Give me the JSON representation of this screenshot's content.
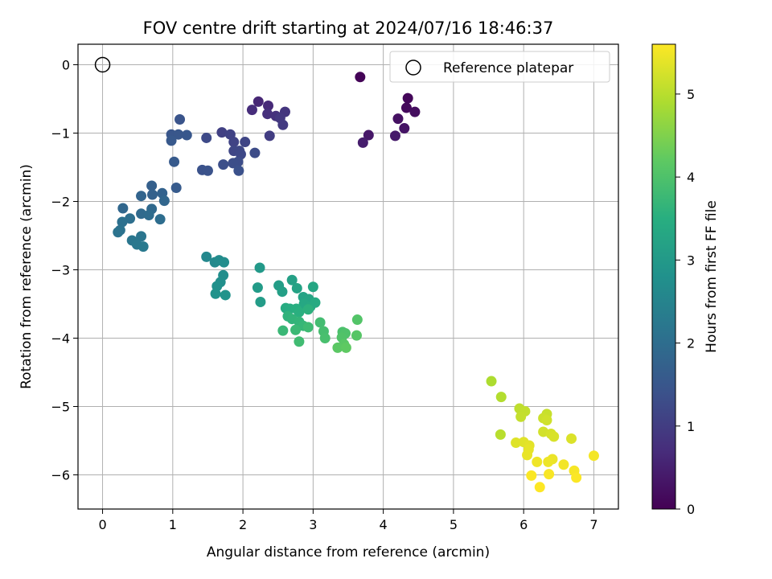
{
  "chart_data": {
    "type": "scatter",
    "title": "FOV centre drift starting at 2024/07/16 18:46:37",
    "xlabel": "Angular distance from reference (arcmin)",
    "ylabel": "Rotation from reference (arcmin)",
    "xlim": [
      -0.35,
      7.35
    ],
    "ylim": [
      -6.5,
      0.3
    ],
    "xticks": [
      0,
      1,
      2,
      3,
      4,
      5,
      6,
      7
    ],
    "yticks": [
      0,
      -1,
      -2,
      -3,
      -4,
      -5,
      -6
    ],
    "grid": true,
    "legend": {
      "placement": "top-right",
      "entries": [
        "Reference platepar"
      ]
    },
    "reference_point": {
      "x": 0,
      "y": 0,
      "marker": "open-circle"
    },
    "colorbar": {
      "label": "Hours from first FF file",
      "colormap": "viridis",
      "range": [
        0,
        5.6
      ],
      "ticks": [
        0,
        1,
        2,
        3,
        4,
        5
      ]
    },
    "points": [
      [
        3.67,
        -0.18,
        0.05
      ],
      [
        4.35,
        -0.49,
        0.1
      ],
      [
        4.33,
        -0.63,
        0.15
      ],
      [
        4.45,
        -0.69,
        0.2
      ],
      [
        4.21,
        -0.79,
        0.25
      ],
      [
        4.3,
        -0.93,
        0.3
      ],
      [
        3.79,
        -1.03,
        0.35
      ],
      [
        4.17,
        -1.04,
        0.4
      ],
      [
        3.71,
        -1.14,
        0.45
      ],
      [
        2.22,
        -0.54,
        0.6
      ],
      [
        2.36,
        -0.6,
        0.65
      ],
      [
        2.13,
        -0.66,
        0.7
      ],
      [
        2.35,
        -0.72,
        0.75
      ],
      [
        2.47,
        -0.75,
        0.8
      ],
      [
        2.6,
        -0.69,
        0.85
      ],
      [
        2.53,
        -0.78,
        0.9
      ],
      [
        2.57,
        -0.88,
        0.95
      ],
      [
        2.38,
        -1.04,
        1.0
      ],
      [
        1.7,
        -0.99,
        1.05
      ],
      [
        1.82,
        -1.02,
        1.1
      ],
      [
        1.87,
        -1.13,
        1.12
      ],
      [
        2.03,
        -1.13,
        1.15
      ],
      [
        1.87,
        -1.26,
        1.18
      ],
      [
        1.95,
        -1.26,
        1.2
      ],
      [
        1.97,
        -1.31,
        1.22
      ],
      [
        1.48,
        -1.07,
        1.25
      ],
      [
        2.17,
        -1.29,
        1.28
      ],
      [
        1.93,
        -1.42,
        1.3
      ],
      [
        1.86,
        -1.44,
        1.32
      ],
      [
        1.72,
        -1.46,
        1.35
      ],
      [
        1.94,
        -1.55,
        1.38
      ],
      [
        1.42,
        -1.54,
        1.4
      ],
      [
        1.5,
        -1.55,
        1.42
      ],
      [
        1.1,
        -0.8,
        1.45
      ],
      [
        0.98,
        -1.02,
        1.48
      ],
      [
        1.08,
        -1.02,
        1.5
      ],
      [
        1.2,
        -1.03,
        1.52
      ],
      [
        0.98,
        -1.11,
        1.55
      ],
      [
        1.02,
        -1.42,
        1.58
      ],
      [
        1.05,
        -1.8,
        1.6
      ],
      [
        0.7,
        -1.77,
        1.7
      ],
      [
        0.71,
        -1.9,
        1.73
      ],
      [
        0.85,
        -1.88,
        1.76
      ],
      [
        0.55,
        -1.92,
        1.8
      ],
      [
        0.88,
        -1.99,
        1.83
      ],
      [
        0.29,
        -2.1,
        1.86
      ],
      [
        0.7,
        -2.11,
        1.9
      ],
      [
        0.55,
        -2.18,
        1.93
      ],
      [
        0.66,
        -2.2,
        1.96
      ],
      [
        0.82,
        -2.26,
        2.0
      ],
      [
        0.39,
        -2.25,
        2.03
      ],
      [
        0.28,
        -2.3,
        2.06
      ],
      [
        0.25,
        -2.42,
        2.1
      ],
      [
        0.22,
        -2.45,
        2.13
      ],
      [
        0.55,
        -2.51,
        2.16
      ],
      [
        0.42,
        -2.57,
        2.2
      ],
      [
        0.49,
        -2.63,
        2.23
      ],
      [
        0.58,
        -2.66,
        2.26
      ],
      [
        1.48,
        -2.81,
        2.6
      ],
      [
        1.6,
        -2.89,
        2.63
      ],
      [
        1.66,
        -2.86,
        2.66
      ],
      [
        1.73,
        -2.89,
        2.7
      ],
      [
        1.72,
        -3.08,
        2.73
      ],
      [
        1.68,
        -3.18,
        2.76
      ],
      [
        1.63,
        -3.24,
        2.8
      ],
      [
        1.61,
        -3.35,
        2.83
      ],
      [
        1.75,
        -3.37,
        2.86
      ],
      [
        2.24,
        -2.97,
        3.0
      ],
      [
        2.21,
        -3.26,
        3.03
      ],
      [
        2.25,
        -3.47,
        3.06
      ],
      [
        2.51,
        -3.23,
        3.1
      ],
      [
        2.56,
        -3.32,
        3.13
      ],
      [
        2.7,
        -3.15,
        3.16
      ],
      [
        2.77,
        -3.27,
        3.2
      ],
      [
        2.86,
        -3.4,
        3.23
      ],
      [
        2.94,
        -3.43,
        3.26
      ],
      [
        3.0,
        -3.25,
        3.3
      ],
      [
        2.87,
        -3.5,
        3.33
      ],
      [
        2.96,
        -3.54,
        3.36
      ],
      [
        3.03,
        -3.48,
        3.4
      ],
      [
        2.61,
        -3.56,
        3.43
      ],
      [
        2.67,
        -3.57,
        3.46
      ],
      [
        2.76,
        -3.57,
        3.5
      ],
      [
        2.8,
        -3.62,
        3.53
      ],
      [
        2.93,
        -3.58,
        3.56
      ],
      [
        2.64,
        -3.68,
        3.6
      ],
      [
        2.7,
        -3.72,
        3.63
      ],
      [
        2.8,
        -3.76,
        3.66
      ],
      [
        2.86,
        -3.82,
        3.7
      ],
      [
        2.57,
        -3.89,
        3.73
      ],
      [
        2.75,
        -3.88,
        3.76
      ],
      [
        2.93,
        -3.84,
        3.8
      ],
      [
        2.8,
        -4.05,
        3.83
      ],
      [
        3.1,
        -3.77,
        3.86
      ],
      [
        3.15,
        -3.9,
        3.9
      ],
      [
        3.17,
        -4.0,
        3.93
      ],
      [
        3.42,
        -3.91,
        3.96
      ],
      [
        3.46,
        -3.93,
        4.0
      ],
      [
        3.41,
        -3.99,
        4.03
      ],
      [
        3.63,
        -3.73,
        4.06
      ],
      [
        3.62,
        -3.96,
        4.1
      ],
      [
        3.44,
        -4.09,
        4.13
      ],
      [
        3.35,
        -4.14,
        4.16
      ],
      [
        3.47,
        -4.14,
        4.2
      ],
      [
        5.54,
        -4.63,
        4.9
      ],
      [
        5.68,
        -4.86,
        4.95
      ],
      [
        5.67,
        -5.41,
        5.0
      ],
      [
        5.94,
        -5.03,
        5.05
      ],
      [
        6.02,
        -5.07,
        5.08
      ],
      [
        5.96,
        -5.15,
        5.1
      ],
      [
        6.33,
        -5.11,
        5.13
      ],
      [
        6.28,
        -5.17,
        5.16
      ],
      [
        6.33,
        -5.2,
        5.2
      ],
      [
        6.28,
        -5.37,
        5.22
      ],
      [
        6.39,
        -5.4,
        5.25
      ],
      [
        6.43,
        -5.44,
        5.28
      ],
      [
        6.68,
        -5.47,
        5.3
      ],
      [
        5.89,
        -5.53,
        5.33
      ],
      [
        6.0,
        -5.52,
        5.35
      ],
      [
        6.08,
        -5.57,
        5.37
      ],
      [
        6.07,
        -5.63,
        5.4
      ],
      [
        6.05,
        -5.71,
        5.42
      ],
      [
        6.41,
        -5.77,
        5.44
      ],
      [
        6.35,
        -5.81,
        5.46
      ],
      [
        6.19,
        -5.81,
        5.48
      ],
      [
        6.57,
        -5.85,
        5.5
      ],
      [
        7.0,
        -5.72,
        5.52
      ],
      [
        6.72,
        -5.94,
        5.54
      ],
      [
        6.36,
        -5.99,
        5.56
      ],
      [
        6.11,
        -6.01,
        5.57
      ],
      [
        6.75,
        -6.04,
        5.58
      ],
      [
        6.23,
        -6.18,
        5.6
      ]
    ]
  }
}
